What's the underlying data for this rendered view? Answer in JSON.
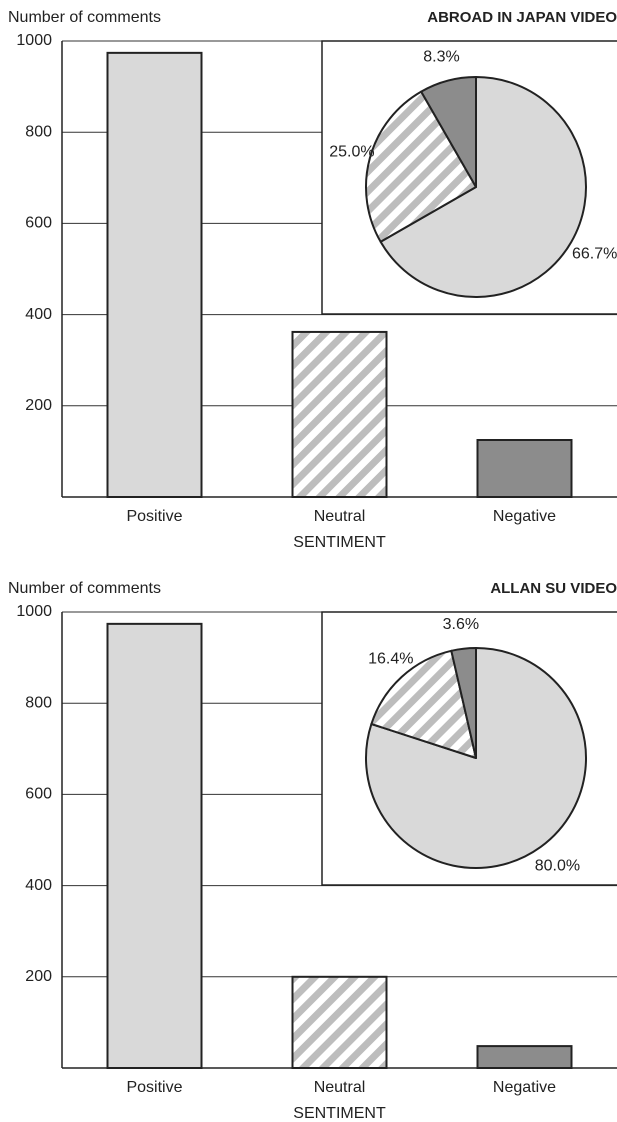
{
  "chart_data": [
    {
      "type": "bar",
      "title": "ABROAD IN JAPAN VIDEO",
      "y_label": "Number of comments",
      "x_label": "SENTIMENT",
      "categories": [
        "Positive",
        "Neutral",
        "Negative"
      ],
      "values": [
        974,
        362,
        125
      ],
      "colors": [
        "#d9d9d9",
        "#c4c4c4",
        "#8c8c8c"
      ],
      "hatch": [
        false,
        true,
        false
      ],
      "ylim": [
        0,
        1000
      ],
      "yticks": [
        200,
        400,
        600,
        800,
        1000
      ],
      "grid": true,
      "inset": {
        "type": "pie",
        "values": [
          66.7,
          25.0,
          8.3
        ],
        "value_labels": [
          "66.7%",
          "25.0%",
          "8.3%"
        ]
      }
    },
    {
      "type": "bar",
      "title": "ALLAN SU VIDEO",
      "y_label": "Number of comments",
      "x_label": "SENTIMENT",
      "categories": [
        "Positive",
        "Neutral",
        "Negative"
      ],
      "values": [
        974,
        200,
        48
      ],
      "colors": [
        "#d9d9d9",
        "#c4c4c4",
        "#8c8c8c"
      ],
      "hatch": [
        false,
        true,
        false
      ],
      "ylim": [
        0,
        1000
      ],
      "yticks": [
        200,
        400,
        600,
        800,
        1000
      ],
      "grid": true,
      "inset": {
        "type": "pie",
        "values": [
          80.0,
          16.4,
          3.6
        ],
        "value_labels": [
          "80.0%",
          "16.4%",
          "3.6%"
        ]
      }
    }
  ]
}
